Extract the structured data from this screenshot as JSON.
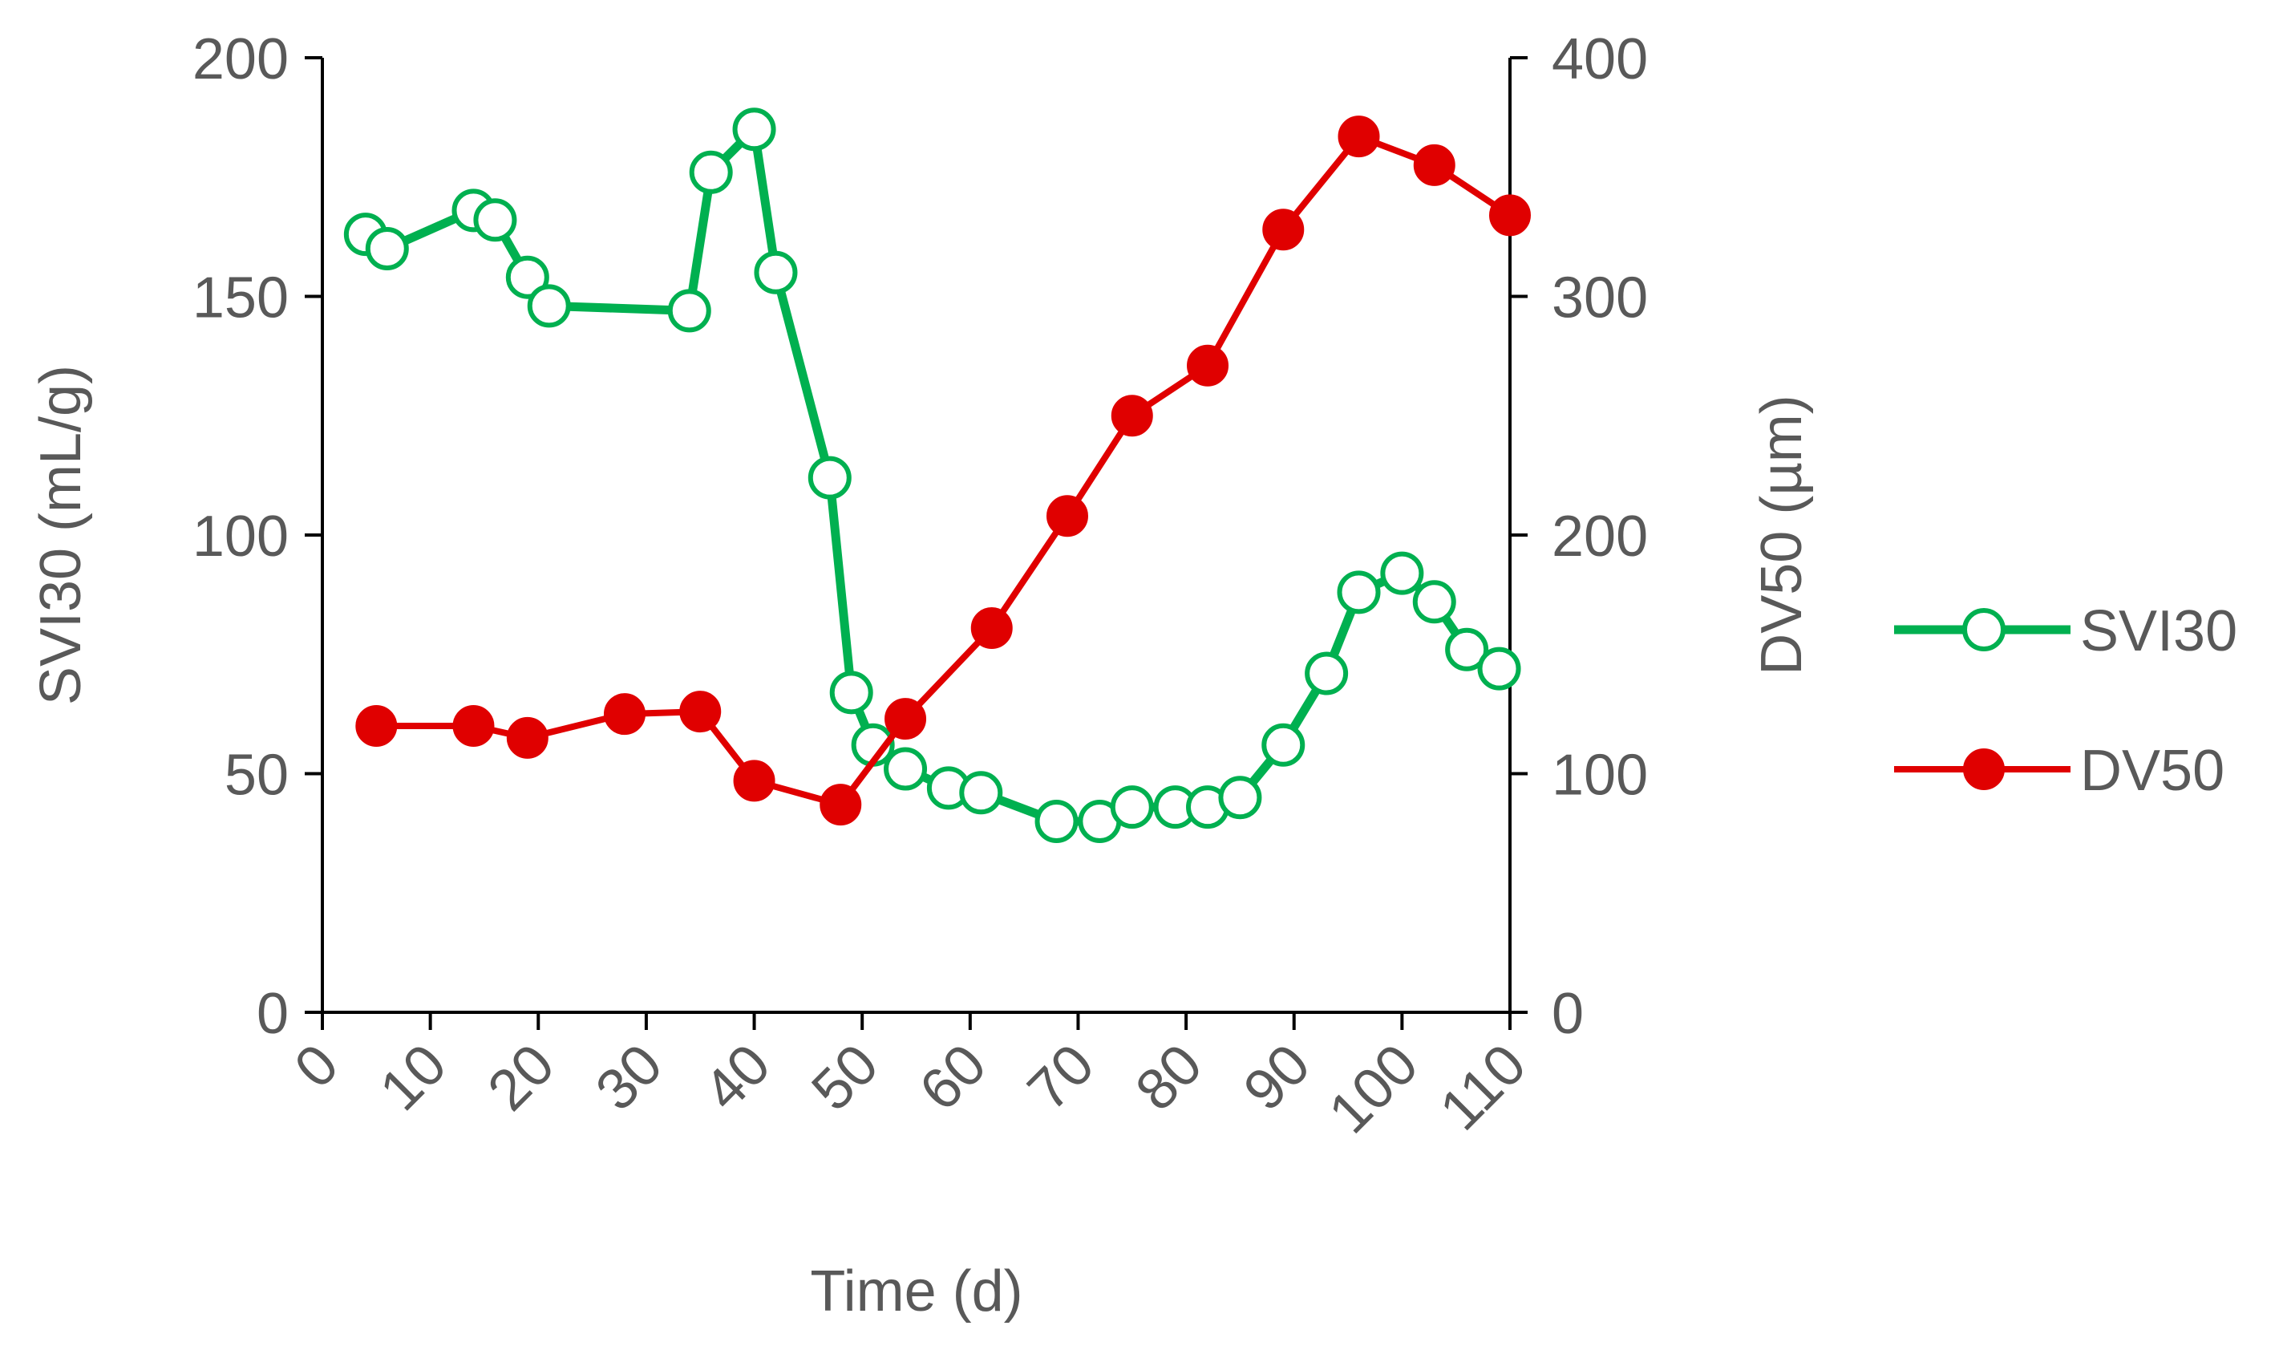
{
  "chart_data": {
    "type": "line",
    "xlabel": "Time (d)",
    "ylabel_left": "SVI30 (mL/g)",
    "ylabel_right": "DV50 (µm)",
    "xlim": [
      0,
      110
    ],
    "ylim_left": [
      0,
      200
    ],
    "ylim_right": [
      0,
      400
    ],
    "xticks": [
      0,
      10,
      20,
      30,
      40,
      50,
      60,
      70,
      80,
      90,
      100,
      110
    ],
    "yticks_left": [
      0,
      50,
      100,
      150,
      200
    ],
    "yticks_right": [
      0,
      100,
      200,
      300,
      400
    ],
    "grid": false,
    "legend_position": "right",
    "series": [
      {
        "name": "SVI30",
        "axis": "left",
        "color": "#00B050",
        "marker": "open-circle",
        "x": [
          4,
          6,
          14,
          16,
          19,
          21,
          34,
          36,
          40,
          42,
          47,
          49,
          51,
          54,
          58,
          61,
          68,
          72,
          75,
          79,
          82,
          85,
          89,
          93,
          96,
          100,
          103,
          106,
          109
        ],
        "y": [
          163,
          160,
          168,
          166,
          154,
          148,
          147,
          176,
          185,
          155,
          112,
          67,
          56,
          51,
          47,
          46,
          40,
          40,
          43,
          43,
          43,
          45,
          56,
          71,
          88,
          92,
          86,
          76,
          72
        ]
      },
      {
        "name": "DV50",
        "axis": "right",
        "color": "#E00000",
        "marker": "filled-circle",
        "x": [
          5,
          14,
          19,
          28,
          35,
          40,
          48,
          54,
          62,
          69,
          75,
          82,
          89,
          96,
          103,
          110
        ],
        "y": [
          120,
          120,
          115,
          125,
          126,
          97,
          87,
          123,
          161,
          208,
          250,
          271,
          328,
          367,
          355,
          334
        ]
      }
    ]
  }
}
